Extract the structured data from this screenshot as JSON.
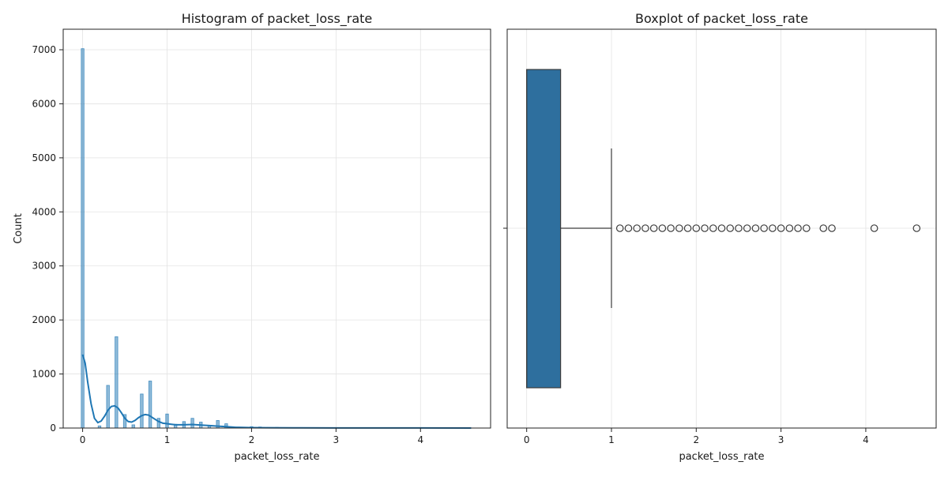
{
  "chart_data": [
    {
      "type": "histogram",
      "title": "Histogram of packet_loss_rate",
      "xlabel": "packet_loss_rate",
      "ylabel": "Count",
      "xlim": [
        -0.23,
        4.83
      ],
      "ylim": [
        0,
        7380
      ],
      "xticks": [
        0,
        1,
        2,
        3,
        4
      ],
      "yticks": [
        0,
        1000,
        2000,
        3000,
        4000,
        5000,
        6000,
        7000
      ],
      "grid": true,
      "bin_width": 0.033,
      "bar_color": "#1f77b4",
      "bins": [
        {
          "x": 0.0,
          "count": 7020
        },
        {
          "x": 0.1,
          "count": 0
        },
        {
          "x": 0.2,
          "count": 40
        },
        {
          "x": 0.3,
          "count": 790
        },
        {
          "x": 0.4,
          "count": 1690
        },
        {
          "x": 0.5,
          "count": 250
        },
        {
          "x": 0.6,
          "count": 60
        },
        {
          "x": 0.7,
          "count": 630
        },
        {
          "x": 0.8,
          "count": 870
        },
        {
          "x": 0.9,
          "count": 180
        },
        {
          "x": 1.0,
          "count": 260
        },
        {
          "x": 1.1,
          "count": 70
        },
        {
          "x": 1.2,
          "count": 120
        },
        {
          "x": 1.3,
          "count": 180
        },
        {
          "x": 1.4,
          "count": 110
        },
        {
          "x": 1.5,
          "count": 50
        },
        {
          "x": 1.6,
          "count": 140
        },
        {
          "x": 1.7,
          "count": 80
        },
        {
          "x": 1.8,
          "count": 20
        },
        {
          "x": 1.9,
          "count": 15
        },
        {
          "x": 2.0,
          "count": 25
        },
        {
          "x": 2.1,
          "count": 20
        },
        {
          "x": 2.2,
          "count": 10
        },
        {
          "x": 2.3,
          "count": 12
        },
        {
          "x": 2.4,
          "count": 8
        },
        {
          "x": 2.5,
          "count": 6
        },
        {
          "x": 2.6,
          "count": 6
        },
        {
          "x": 2.7,
          "count": 5
        },
        {
          "x": 2.8,
          "count": 5
        },
        {
          "x": 2.9,
          "count": 4
        },
        {
          "x": 3.0,
          "count": 4
        },
        {
          "x": 3.1,
          "count": 3
        },
        {
          "x": 3.2,
          "count": 3
        },
        {
          "x": 3.3,
          "count": 3
        },
        {
          "x": 3.5,
          "count": 2
        },
        {
          "x": 3.6,
          "count": 2
        },
        {
          "x": 4.1,
          "count": 1
        },
        {
          "x": 4.6,
          "count": 1
        }
      ],
      "kde": {
        "color": "#1f77b4",
        "x": [
          0.0,
          0.03,
          0.06,
          0.1,
          0.14,
          0.18,
          0.22,
          0.26,
          0.3,
          0.34,
          0.38,
          0.42,
          0.46,
          0.5,
          0.54,
          0.58,
          0.62,
          0.66,
          0.7,
          0.74,
          0.78,
          0.82,
          0.86,
          0.9,
          0.95,
          1.0,
          1.05,
          1.1,
          1.2,
          1.3,
          1.4,
          1.5,
          1.6,
          1.7,
          1.8,
          2.0,
          2.2,
          2.5,
          3.0,
          3.5,
          4.0,
          4.6
        ],
        "y": [
          1360,
          1200,
          850,
          450,
          180,
          100,
          130,
          220,
          330,
          400,
          410,
          370,
          280,
          180,
          120,
          110,
          140,
          190,
          230,
          250,
          240,
          200,
          160,
          120,
          90,
          80,
          70,
          60,
          60,
          65,
          55,
          45,
          35,
          25,
          15,
          8,
          5,
          3,
          2,
          1,
          1,
          0
        ]
      }
    },
    {
      "type": "boxplot",
      "title": "Boxplot of packet_loss_rate",
      "xlabel": "packet_loss_rate",
      "xlim": [
        -0.23,
        4.83
      ],
      "xticks": [
        0,
        1,
        2,
        3,
        4
      ],
      "grid": true,
      "box_color": "#2e6f9e",
      "stats": {
        "min": 0.0,
        "q1": 0.0,
        "median": 0.0,
        "q3": 0.4,
        "whisker_high": 1.0
      },
      "outliers": [
        1.1,
        1.2,
        1.3,
        1.4,
        1.5,
        1.6,
        1.7,
        1.8,
        1.9,
        2.0,
        2.1,
        2.2,
        2.3,
        2.4,
        2.5,
        2.6,
        2.7,
        2.8,
        2.9,
        3.0,
        3.1,
        3.2,
        3.3,
        3.5,
        3.6,
        4.1,
        4.6
      ]
    }
  ]
}
